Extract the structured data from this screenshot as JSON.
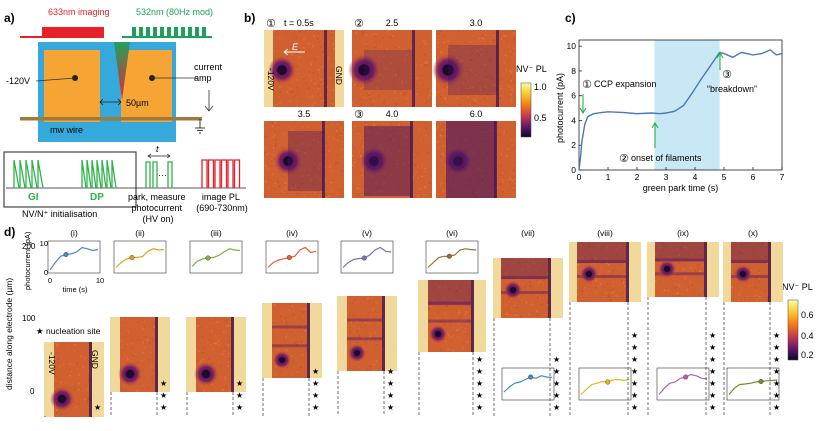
{
  "panel_labels": {
    "a": "a)",
    "b": "b)",
    "c": "c)",
    "d": "d)"
  },
  "panel_a": {
    "imaging_label": "633nm imaging",
    "mod_label": "532nm (80Hz mod)",
    "voltage_label": "-120V",
    "current_amp_label": "current amp",
    "gap_label": "50µm",
    "wire_label": "mw wire",
    "seq_gi": "GI",
    "seq_dp": "DP",
    "seq_t": "t",
    "seq_dots": "···",
    "seq_init_label": "NV/N⁺ initialisation",
    "seq_park_label": "park, measure\nphotocurrent\n(HV on)",
    "seq_image_label": "image PL\n(690-730nm)",
    "colors": {
      "imaging": "#e8202a",
      "mod": "#1fa05a",
      "chip": "#35a8dc",
      "pad": "#f6a535",
      "wire": "#a07a3a",
      "gi_dp": "#2db34a",
      "image_pulse": "#e8202a"
    }
  },
  "panel_b": {
    "times": [
      "t = 0.5s",
      "2.5",
      "3.0",
      "3.5",
      "4.0",
      "6.0"
    ],
    "circled": [
      "①",
      "②",
      "",
      "",
      "③",
      ""
    ],
    "field_label": "E",
    "left_electrode": "-120V",
    "right_electrode": "GND",
    "colorbar_title": "NV⁻ PL",
    "colorbar_ticks": [
      "1.0",
      "0.5"
    ]
  },
  "panel_c": {
    "annotations": {
      "ccp": "CCP expansion",
      "filaments": "onset of filaments",
      "breakdown": "“breakdown”"
    },
    "circled": [
      "①",
      "②",
      "③"
    ],
    "highlight_range": [
      2.6,
      4.85
    ],
    "chart_data": {
      "type": "line",
      "xlabel": "green park time (s)",
      "ylabel": "photocurrent (pA)",
      "xlim": [
        0,
        7
      ],
      "ylim": [
        0,
        10.5
      ],
      "xticks": [
        "0",
        "1",
        "2",
        "3",
        "4",
        "5",
        "6",
        "7"
      ],
      "yticks": [
        "0",
        "2",
        "4",
        "6",
        "8",
        "10"
      ],
      "x": [
        0,
        0.05,
        0.1,
        0.2,
        0.3,
        0.5,
        0.8,
        1.0,
        1.5,
        2.0,
        2.5,
        2.8,
        3.0,
        3.3,
        3.6,
        3.9,
        4.2,
        4.5,
        4.7,
        4.85,
        5.0,
        5.3,
        5.6,
        6.0,
        6.3,
        6.6,
        6.8,
        7.0
      ],
      "y": [
        0.0,
        1.0,
        2.3,
        3.7,
        4.3,
        4.55,
        4.65,
        4.7,
        4.65,
        4.55,
        4.6,
        4.55,
        4.6,
        4.75,
        5.2,
        6.2,
        7.3,
        8.3,
        9.0,
        9.5,
        9.4,
        9.1,
        9.5,
        9.3,
        9.4,
        9.7,
        9.3,
        9.4
      ]
    }
  },
  "panel_d": {
    "roman": [
      "(i)",
      "(ii)",
      "(iii)",
      "(iv)",
      "(v)",
      "(vi)",
      "(vii)",
      "(viii)",
      "(ix)",
      "(x)"
    ],
    "ylabel": "distance along electrode (µm)",
    "yticks": [
      "200",
      "100",
      "0"
    ],
    "inset_ylabel": "photocurrent (pA)",
    "inset_yticks": [
      "10",
      "0"
    ],
    "inset_xlabel": "time (s)",
    "inset_xticks": [
      "0",
      "10"
    ],
    "nucleation_label": "★  nucleation site",
    "left_electrode": "-120V",
    "right_electrode": "GND",
    "colorbar_title": "NV⁻ PL",
    "colorbar_ticks": [
      "0.6",
      "0.4",
      "0.2"
    ],
    "curve_colors": [
      "#4a87c5",
      "#e3a021",
      "#7db043",
      "#e0603a",
      "#7a6fb8",
      "#9a6a3a",
      "#3f8fc0",
      "#e6b620",
      "#b561b0",
      "#7d8a2a"
    ]
  }
}
